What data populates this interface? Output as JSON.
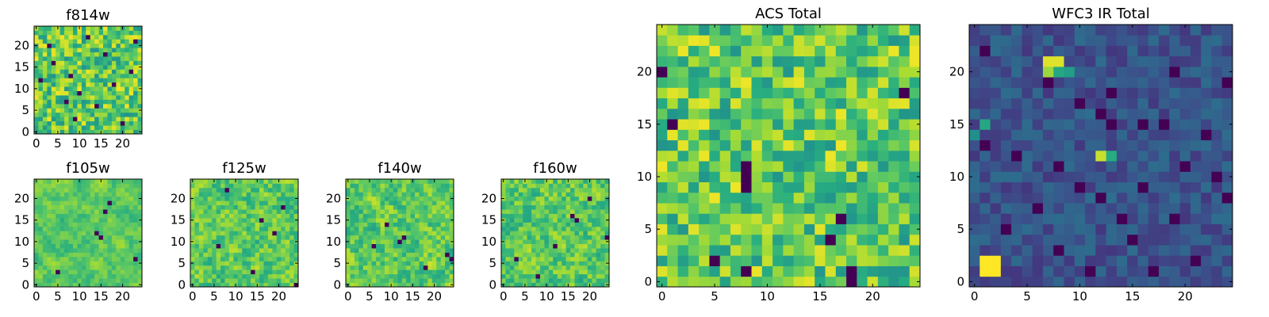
{
  "chart_data": [
    {
      "id": "f814w",
      "type": "heatmap",
      "title": "f814w",
      "grid_size": 25,
      "xlim": [
        -0.5,
        24.5
      ],
      "ylim": [
        -0.5,
        24.5
      ],
      "xticks": [
        0,
        5,
        10,
        15,
        20
      ],
      "yticks": [
        0,
        5,
        10,
        15,
        20
      ],
      "colormap": "viridis",
      "seed": 11,
      "style": "noise",
      "smoothing": 0,
      "dark_pixels": [
        [
          1,
          12
        ],
        [
          4,
          16
        ],
        [
          3,
          20
        ],
        [
          8,
          13
        ],
        [
          9,
          3
        ],
        [
          10,
          9
        ],
        [
          12,
          22
        ],
        [
          14,
          6
        ],
        [
          16,
          18
        ],
        [
          18,
          11
        ],
        [
          20,
          2
        ],
        [
          22,
          14
        ],
        [
          23,
          21
        ],
        [
          7,
          7
        ]
      ],
      "bright_pixels": []
    },
    {
      "id": "f105w",
      "type": "heatmap",
      "title": "f105w",
      "grid_size": 25,
      "xlim": [
        -0.5,
        24.5
      ],
      "ylim": [
        -0.5,
        24.5
      ],
      "xticks": [
        0,
        5,
        10,
        15,
        20
      ],
      "yticks": [
        0,
        5,
        10,
        15,
        20
      ],
      "colormap": "viridis",
      "seed": 23,
      "style": "noise",
      "smoothing": 2,
      "dark_pixels": [
        [
          16,
          17
        ],
        [
          17,
          19
        ],
        [
          15,
          11
        ],
        [
          14,
          12
        ],
        [
          23,
          6
        ],
        [
          5,
          3
        ]
      ],
      "bright_pixels": []
    },
    {
      "id": "f125w",
      "type": "heatmap",
      "title": "f125w",
      "grid_size": 25,
      "xlim": [
        -0.5,
        24.5
      ],
      "ylim": [
        -0.5,
        24.5
      ],
      "xticks": [
        0,
        5,
        10,
        15,
        20
      ],
      "yticks": [
        0,
        5,
        10,
        15,
        20
      ],
      "colormap": "viridis",
      "seed": 37,
      "style": "noise",
      "smoothing": 1,
      "dark_pixels": [
        [
          16,
          15
        ],
        [
          19,
          12
        ],
        [
          8,
          22
        ],
        [
          24,
          0
        ],
        [
          14,
          3
        ],
        [
          21,
          18
        ],
        [
          6,
          9
        ]
      ],
      "bright_pixels": []
    },
    {
      "id": "f140w",
      "type": "heatmap",
      "title": "f140w",
      "grid_size": 25,
      "xlim": [
        -0.5,
        24.5
      ],
      "ylim": [
        -0.5,
        24.5
      ],
      "xticks": [
        0,
        5,
        10,
        15,
        20
      ],
      "yticks": [
        0,
        5,
        10,
        15,
        20
      ],
      "colormap": "viridis",
      "seed": 51,
      "style": "noise",
      "smoothing": 1,
      "dark_pixels": [
        [
          13,
          11
        ],
        [
          12,
          10
        ],
        [
          6,
          9
        ],
        [
          23,
          7
        ],
        [
          24,
          6
        ],
        [
          18,
          4
        ],
        [
          9,
          14
        ]
      ],
      "bright_pixels": []
    },
    {
      "id": "f160w",
      "type": "heatmap",
      "title": "f160w",
      "grid_size": 25,
      "xlim": [
        -0.5,
        24.5
      ],
      "ylim": [
        -0.5,
        24.5
      ],
      "xticks": [
        0,
        5,
        10,
        15,
        20
      ],
      "yticks": [
        0,
        5,
        10,
        15,
        20
      ],
      "colormap": "viridis",
      "seed": 67,
      "style": "noise",
      "smoothing": 1,
      "dark_pixels": [
        [
          16,
          16
        ],
        [
          17,
          15
        ],
        [
          24,
          11
        ],
        [
          3,
          6
        ],
        [
          12,
          9
        ],
        [
          20,
          20
        ],
        [
          8,
          2
        ]
      ],
      "bright_pixels": []
    },
    {
      "id": "acs_total",
      "type": "heatmap",
      "title": "ACS Total",
      "grid_size": 25,
      "xlim": [
        -0.5,
        24.5
      ],
      "ylim": [
        -0.5,
        24.5
      ],
      "xticks": [
        0,
        5,
        10,
        15,
        20
      ],
      "yticks": [
        0,
        5,
        10,
        15,
        20
      ],
      "colormap": "viridis",
      "seed": 83,
      "style": "noise",
      "smoothing": 0,
      "dark_pixels": [
        [
          0,
          20
        ],
        [
          1,
          15
        ],
        [
          8,
          11
        ],
        [
          8,
          10
        ],
        [
          8,
          9
        ],
        [
          8,
          1
        ],
        [
          16,
          4
        ],
        [
          18,
          0
        ],
        [
          18,
          1
        ],
        [
          17,
          6
        ],
        [
          23,
          18
        ],
        [
          5,
          2
        ]
      ],
      "bright_pixels": []
    },
    {
      "id": "wfc3_ir_total",
      "type": "heatmap",
      "title": "WFC3 IR Total",
      "grid_size": 25,
      "xlim": [
        -0.5,
        24.5
      ],
      "ylim": [
        -0.5,
        24.5
      ],
      "xticks": [
        0,
        5,
        10,
        15,
        20
      ],
      "yticks": [
        0,
        5,
        10,
        15,
        20
      ],
      "colormap": "viridis",
      "seed": 97,
      "style": "faint",
      "smoothing": 0,
      "dark_pixels": [
        [
          1,
          22
        ],
        [
          7,
          19
        ],
        [
          13,
          18
        ],
        [
          19,
          20
        ],
        [
          10,
          17
        ],
        [
          12,
          16
        ],
        [
          13,
          15
        ],
        [
          16,
          15
        ],
        [
          18,
          15
        ],
        [
          1,
          13
        ],
        [
          4,
          12
        ],
        [
          8,
          11
        ],
        [
          10,
          9
        ],
        [
          12,
          8
        ],
        [
          14,
          6
        ],
        [
          16,
          9
        ],
        [
          20,
          11
        ],
        [
          23,
          10
        ],
        [
          3,
          5
        ],
        [
          8,
          3
        ],
        [
          15,
          4
        ],
        [
          21,
          2
        ],
        [
          24,
          8
        ],
        [
          6,
          7
        ],
        [
          19,
          6
        ],
        [
          22,
          14
        ],
        [
          24,
          19
        ],
        [
          11,
          1
        ],
        [
          17,
          1
        ]
      ],
      "bright_pixels": [
        [
          1,
          1,
          1.0
        ],
        [
          2,
          1,
          1.0
        ],
        [
          1,
          2,
          1.0
        ],
        [
          2,
          2,
          1.0
        ],
        [
          7,
          21,
          0.95
        ],
        [
          8,
          21,
          0.95
        ],
        [
          7,
          20,
          0.85
        ],
        [
          8,
          20,
          0.6
        ],
        [
          9,
          20,
          0.55
        ],
        [
          12,
          12,
          0.92
        ],
        [
          13,
          12,
          0.62
        ],
        [
          1,
          15,
          0.6
        ],
        [
          0,
          14,
          0.5
        ]
      ]
    }
  ]
}
